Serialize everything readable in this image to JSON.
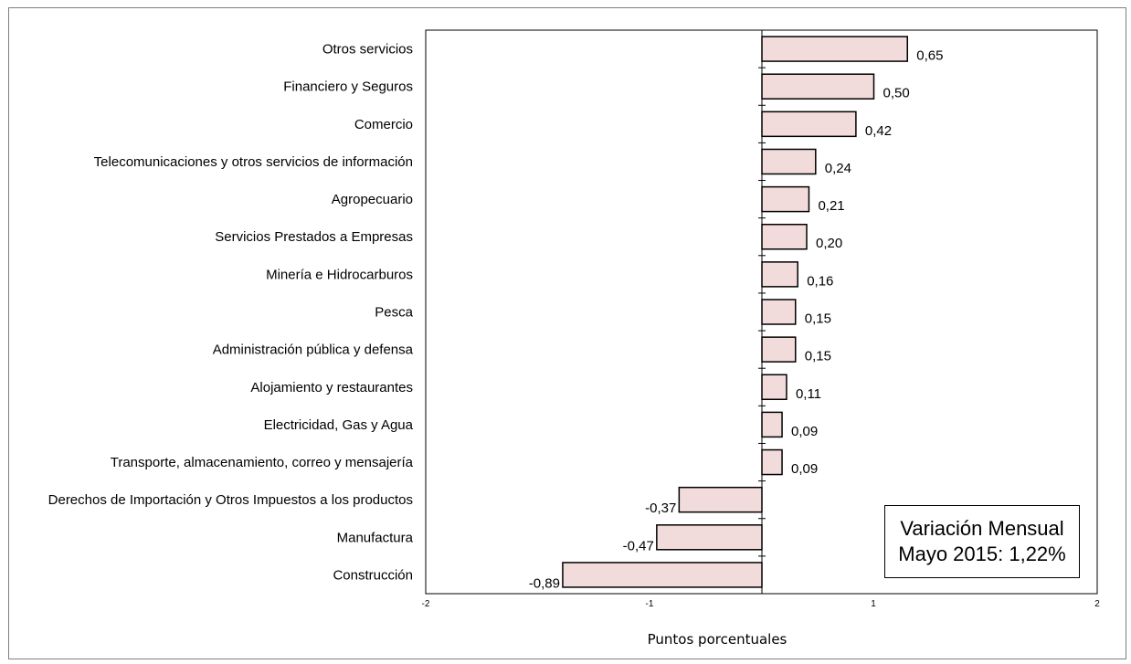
{
  "chart_data": {
    "type": "bar",
    "orientation": "horizontal",
    "categories": [
      "Otros servicios",
      "Financiero y Seguros",
      "Comercio",
      "Telecomunicaciones y otros servicios de información",
      "Agropecuario",
      "Servicios Prestados a Empresas",
      "Minería e Hidrocarburos",
      "Pesca",
      "Administración pública y defensa",
      "Alojamiento y restaurantes",
      "Electricidad, Gas y Agua",
      "Transporte, almacenamiento, correo y mensajería",
      "Derechos de Importación y Otros Impuestos a los productos",
      "Manufactura",
      "Construcción"
    ],
    "values": [
      0.65,
      0.5,
      0.42,
      0.24,
      0.21,
      0.2,
      0.16,
      0.15,
      0.15,
      0.11,
      0.09,
      0.09,
      -0.37,
      -0.47,
      -0.89
    ],
    "value_labels": [
      "0,65",
      "0,50",
      "0,42",
      "0,24",
      "0,21",
      "0,20",
      "0,16",
      "0,15",
      "0,15",
      "0,11",
      "0,09",
      "0,09",
      "-0,37",
      "-0,47",
      "-0,89"
    ],
    "xlabel": "Puntos porcentuales",
    "xlim": [
      -2,
      2
    ],
    "xticks": [
      -2,
      -1,
      1,
      2
    ],
    "xtick_labels": [
      "-2",
      "-1",
      "1",
      "2"
    ],
    "grid": false,
    "bar_fill": "#f2dcdb",
    "bar_stroke": "#000000"
  },
  "annotation": {
    "line1": "Variación Mensual",
    "line2": "Mayo 2015: 1,22%"
  }
}
